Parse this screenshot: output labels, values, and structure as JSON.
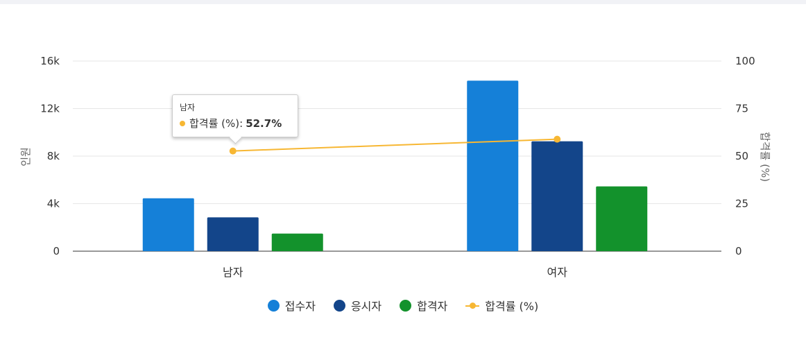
{
  "chart_data": {
    "type": "bar",
    "categories": [
      "남자",
      "여자"
    ],
    "series": [
      {
        "name": "접수자",
        "type": "bar",
        "axis": "left",
        "color": "#1580d8",
        "values": [
          4450,
          14350
        ]
      },
      {
        "name": "응시자",
        "type": "bar",
        "axis": "left",
        "color": "#13458a",
        "values": [
          2850,
          9250
        ]
      },
      {
        "name": "합격자",
        "type": "bar",
        "axis": "left",
        "color": "#13922c",
        "values": [
          1480,
          5450
        ]
      },
      {
        "name": "합격률 (%)",
        "type": "line",
        "axis": "right",
        "color": "#f7b733",
        "values": [
          52.7,
          58.9
        ]
      }
    ],
    "yaxis_left": {
      "title": "인원",
      "min": 0,
      "max": 16000,
      "ticks": [
        0,
        4000,
        8000,
        12000,
        16000
      ],
      "tick_labels": [
        "0",
        "4k",
        "8k",
        "12k",
        "16k"
      ]
    },
    "yaxis_right": {
      "title": "합격률 (%)",
      "min": 0,
      "max": 100,
      "ticks": [
        0,
        25,
        50,
        75,
        100
      ],
      "tick_labels": [
        "0",
        "25",
        "50",
        "75",
        "100"
      ]
    },
    "grid": true,
    "legend": "bottom-center",
    "tooltip": {
      "category": "남자",
      "series": "합격률 (%)",
      "label": "합격률 (%):",
      "value": "52.7%"
    }
  }
}
